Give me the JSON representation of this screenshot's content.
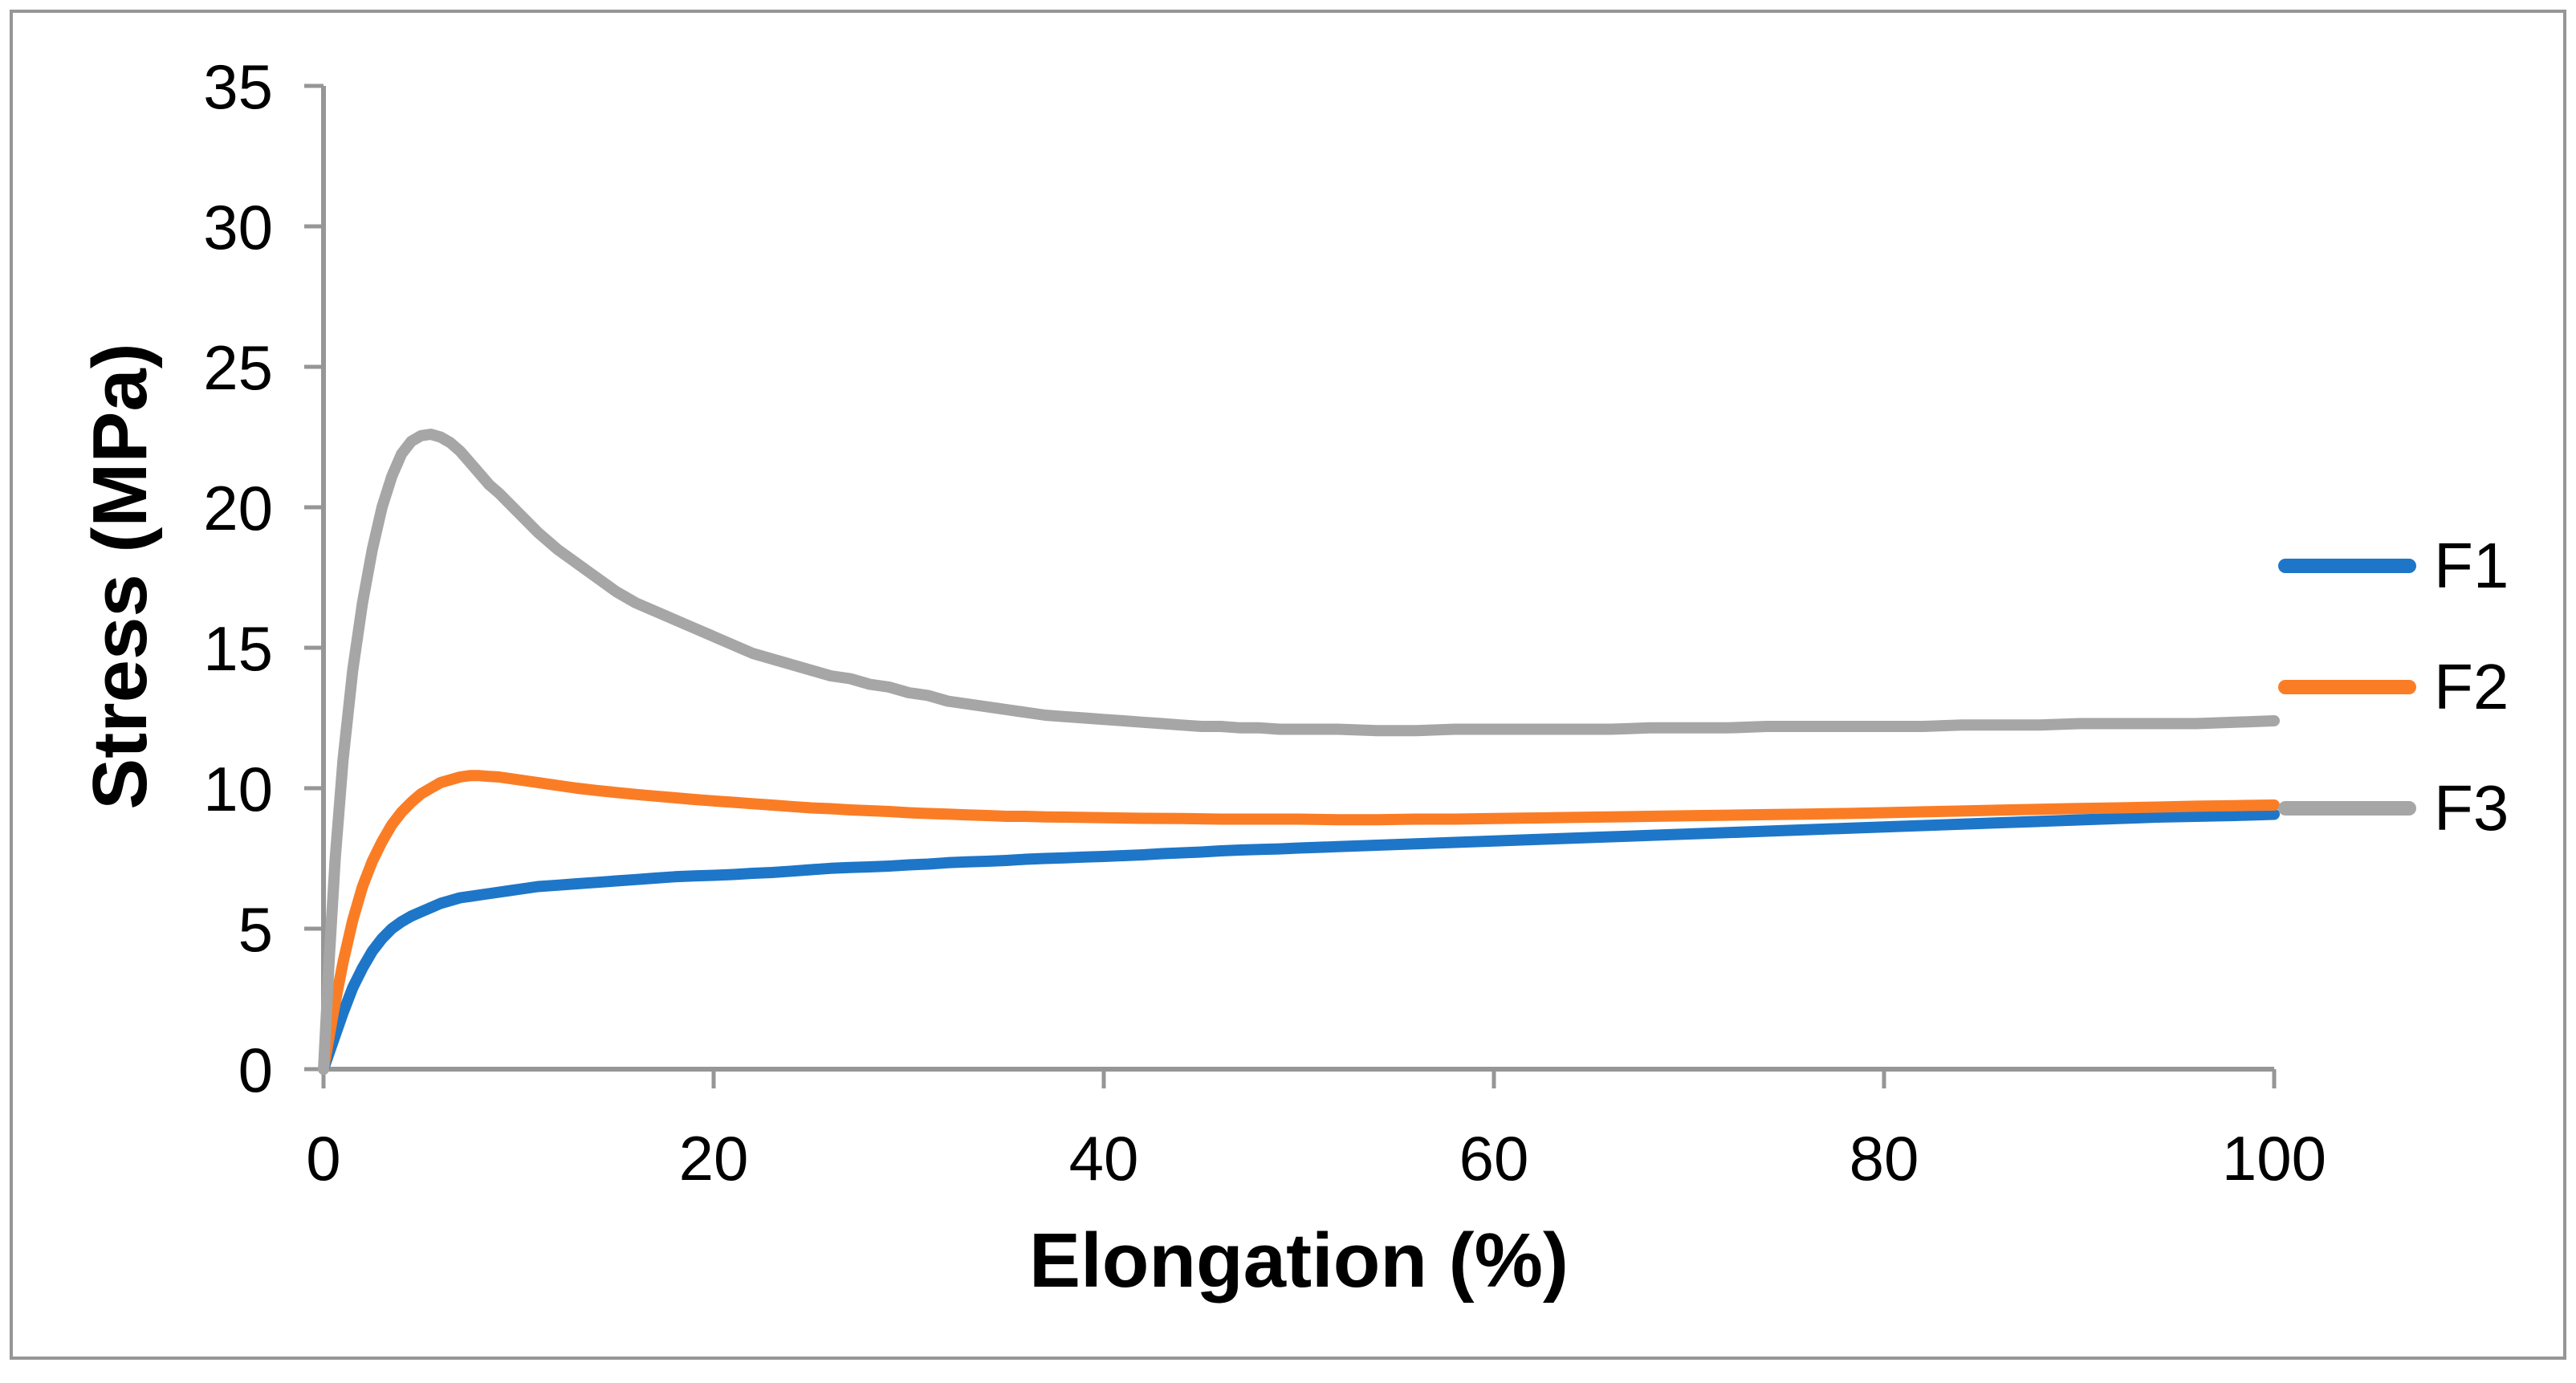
{
  "figure": {
    "background": "#FFFFFF",
    "border_color": "#969696"
  },
  "chart_data": {
    "type": "line",
    "title": "",
    "xlabel": "Elongation (%)",
    "ylabel": "Stress (MPa)",
    "xlim": [
      0,
      100
    ],
    "ylim": [
      0,
      35
    ],
    "xticks": [
      0,
      20,
      40,
      60,
      80,
      100
    ],
    "yticks": [
      0,
      5,
      10,
      15,
      20,
      25,
      30,
      35
    ],
    "grid": false,
    "legend_position": "right-middle",
    "axis_color": "#969696",
    "tick_label_color": "#000000",
    "series": [
      {
        "name": "F1",
        "color": "#1E76C8",
        "points": [
          [
            0,
            0
          ],
          [
            0.5,
            1.0
          ],
          [
            1,
            2.0
          ],
          [
            1.5,
            2.9
          ],
          [
            2,
            3.6
          ],
          [
            2.5,
            4.2
          ],
          [
            3,
            4.65
          ],
          [
            3.5,
            5.0
          ],
          [
            4,
            5.25
          ],
          [
            4.5,
            5.45
          ],
          [
            5,
            5.6
          ],
          [
            5.5,
            5.75
          ],
          [
            6,
            5.9
          ],
          [
            6.5,
            6.0
          ],
          [
            7,
            6.1
          ],
          [
            7.5,
            6.15
          ],
          [
            8,
            6.2
          ],
          [
            9,
            6.3
          ],
          [
            10,
            6.4
          ],
          [
            11,
            6.5
          ],
          [
            12,
            6.55
          ],
          [
            13,
            6.6
          ],
          [
            14,
            6.65
          ],
          [
            15,
            6.7
          ],
          [
            16,
            6.75
          ],
          [
            17,
            6.8
          ],
          [
            18,
            6.85
          ],
          [
            19,
            6.88
          ],
          [
            20,
            6.9
          ],
          [
            21,
            6.93
          ],
          [
            22,
            6.97
          ],
          [
            23,
            7.0
          ],
          [
            24,
            7.05
          ],
          [
            25,
            7.1
          ],
          [
            26,
            7.15
          ],
          [
            27,
            7.18
          ],
          [
            28,
            7.2
          ],
          [
            29,
            7.23
          ],
          [
            30,
            7.27
          ],
          [
            31,
            7.3
          ],
          [
            32,
            7.35
          ],
          [
            33,
            7.38
          ],
          [
            34,
            7.4
          ],
          [
            35,
            7.43
          ],
          [
            36,
            7.47
          ],
          [
            37,
            7.5
          ],
          [
            38,
            7.52
          ],
          [
            39,
            7.55
          ],
          [
            40,
            7.57
          ],
          [
            41,
            7.6
          ],
          [
            42,
            7.63
          ],
          [
            43,
            7.67
          ],
          [
            44,
            7.7
          ],
          [
            45,
            7.73
          ],
          [
            46,
            7.77
          ],
          [
            47,
            7.8
          ],
          [
            48,
            7.82
          ],
          [
            49,
            7.84
          ],
          [
            50,
            7.87
          ],
          [
            52,
            7.92
          ],
          [
            54,
            7.97
          ],
          [
            56,
            8.02
          ],
          [
            58,
            8.07
          ],
          [
            60,
            8.12
          ],
          [
            62,
            8.17
          ],
          [
            64,
            8.22
          ],
          [
            66,
            8.27
          ],
          [
            68,
            8.32
          ],
          [
            70,
            8.37
          ],
          [
            72,
            8.42
          ],
          [
            74,
            8.47
          ],
          [
            76,
            8.52
          ],
          [
            78,
            8.57
          ],
          [
            80,
            8.62
          ],
          [
            82,
            8.67
          ],
          [
            84,
            8.72
          ],
          [
            86,
            8.77
          ],
          [
            88,
            8.82
          ],
          [
            90,
            8.87
          ],
          [
            92,
            8.92
          ],
          [
            94,
            8.97
          ],
          [
            96,
            9.0
          ],
          [
            98,
            9.03
          ],
          [
            100,
            9.07
          ]
        ]
      },
      {
        "name": "F2",
        "color": "#FA7D26",
        "points": [
          [
            0,
            0
          ],
          [
            0.5,
            2.0
          ],
          [
            1,
            3.8
          ],
          [
            1.5,
            5.3
          ],
          [
            2,
            6.5
          ],
          [
            2.5,
            7.4
          ],
          [
            3,
            8.1
          ],
          [
            3.5,
            8.7
          ],
          [
            4,
            9.15
          ],
          [
            4.5,
            9.5
          ],
          [
            5,
            9.8
          ],
          [
            5.5,
            10.0
          ],
          [
            6,
            10.2
          ],
          [
            6.5,
            10.3
          ],
          [
            7,
            10.4
          ],
          [
            7.5,
            10.45
          ],
          [
            8,
            10.45
          ],
          [
            8.5,
            10.42
          ],
          [
            9,
            10.4
          ],
          [
            10,
            10.3
          ],
          [
            11,
            10.2
          ],
          [
            12,
            10.1
          ],
          [
            13,
            10.0
          ],
          [
            14,
            9.92
          ],
          [
            15,
            9.85
          ],
          [
            16,
            9.78
          ],
          [
            17,
            9.72
          ],
          [
            18,
            9.66
          ],
          [
            19,
            9.6
          ],
          [
            20,
            9.55
          ],
          [
            21,
            9.5
          ],
          [
            22,
            9.45
          ],
          [
            23,
            9.4
          ],
          [
            24,
            9.35
          ],
          [
            25,
            9.3
          ],
          [
            26,
            9.27
          ],
          [
            27,
            9.23
          ],
          [
            28,
            9.2
          ],
          [
            29,
            9.17
          ],
          [
            30,
            9.13
          ],
          [
            31,
            9.1
          ],
          [
            32,
            9.08
          ],
          [
            33,
            9.05
          ],
          [
            34,
            9.03
          ],
          [
            35,
            9.0
          ],
          [
            36,
            9.0
          ],
          [
            37,
            8.98
          ],
          [
            38,
            8.97
          ],
          [
            39,
            8.96
          ],
          [
            40,
            8.95
          ],
          [
            42,
            8.93
          ],
          [
            44,
            8.92
          ],
          [
            46,
            8.9
          ],
          [
            48,
            8.9
          ],
          [
            50,
            8.9
          ],
          [
            52,
            8.88
          ],
          [
            54,
            8.88
          ],
          [
            56,
            8.9
          ],
          [
            58,
            8.9
          ],
          [
            60,
            8.92
          ],
          [
            62,
            8.94
          ],
          [
            64,
            8.96
          ],
          [
            66,
            8.98
          ],
          [
            68,
            9.0
          ],
          [
            70,
            9.02
          ],
          [
            72,
            9.04
          ],
          [
            74,
            9.06
          ],
          [
            76,
            9.08
          ],
          [
            78,
            9.1
          ],
          [
            80,
            9.13
          ],
          [
            82,
            9.16
          ],
          [
            84,
            9.19
          ],
          [
            86,
            9.22
          ],
          [
            88,
            9.25
          ],
          [
            90,
            9.28
          ],
          [
            92,
            9.3
          ],
          [
            94,
            9.33
          ],
          [
            96,
            9.36
          ],
          [
            98,
            9.38
          ],
          [
            100,
            9.4
          ]
        ]
      },
      {
        "name": "F3",
        "color": "#A6A6A6",
        "points": [
          [
            0,
            0
          ],
          [
            0.3,
            4.0
          ],
          [
            0.6,
            7.5
          ],
          [
            1,
            11.0
          ],
          [
            1.5,
            14.2
          ],
          [
            2,
            16.6
          ],
          [
            2.5,
            18.5
          ],
          [
            3,
            20.0
          ],
          [
            3.5,
            21.1
          ],
          [
            4,
            21.9
          ],
          [
            4.5,
            22.35
          ],
          [
            5,
            22.55
          ],
          [
            5.5,
            22.6
          ],
          [
            6,
            22.5
          ],
          [
            6.5,
            22.3
          ],
          [
            7,
            22.0
          ],
          [
            7.5,
            21.6
          ],
          [
            8,
            21.2
          ],
          [
            8.5,
            20.8
          ],
          [
            9,
            20.5
          ],
          [
            10,
            19.8
          ],
          [
            11,
            19.1
          ],
          [
            12,
            18.5
          ],
          [
            13,
            18.0
          ],
          [
            14,
            17.5
          ],
          [
            15,
            17.0
          ],
          [
            16,
            16.6
          ],
          [
            17,
            16.3
          ],
          [
            18,
            16.0
          ],
          [
            19,
            15.7
          ],
          [
            20,
            15.4
          ],
          [
            21,
            15.1
          ],
          [
            22,
            14.8
          ],
          [
            23,
            14.6
          ],
          [
            24,
            14.4
          ],
          [
            25,
            14.2
          ],
          [
            26,
            14.0
          ],
          [
            27,
            13.9
          ],
          [
            28,
            13.7
          ],
          [
            29,
            13.6
          ],
          [
            30,
            13.4
          ],
          [
            31,
            13.3
          ],
          [
            32,
            13.1
          ],
          [
            33,
            13.0
          ],
          [
            34,
            12.9
          ],
          [
            35,
            12.8
          ],
          [
            36,
            12.7
          ],
          [
            37,
            12.6
          ],
          [
            38,
            12.55
          ],
          [
            39,
            12.5
          ],
          [
            40,
            12.45
          ],
          [
            41,
            12.4
          ],
          [
            42,
            12.35
          ],
          [
            43,
            12.3
          ],
          [
            44,
            12.25
          ],
          [
            45,
            12.2
          ],
          [
            46,
            12.2
          ],
          [
            47,
            12.15
          ],
          [
            48,
            12.15
          ],
          [
            49,
            12.1
          ],
          [
            50,
            12.1
          ],
          [
            52,
            12.1
          ],
          [
            54,
            12.05
          ],
          [
            56,
            12.05
          ],
          [
            58,
            12.1
          ],
          [
            60,
            12.1
          ],
          [
            62,
            12.1
          ],
          [
            64,
            12.1
          ],
          [
            66,
            12.1
          ],
          [
            68,
            12.15
          ],
          [
            70,
            12.15
          ],
          [
            72,
            12.15
          ],
          [
            74,
            12.2
          ],
          [
            76,
            12.2
          ],
          [
            78,
            12.2
          ],
          [
            80,
            12.2
          ],
          [
            82,
            12.2
          ],
          [
            84,
            12.25
          ],
          [
            86,
            12.25
          ],
          [
            88,
            12.25
          ],
          [
            90,
            12.3
          ],
          [
            92,
            12.3
          ],
          [
            94,
            12.3
          ],
          [
            96,
            12.3
          ],
          [
            98,
            12.35
          ],
          [
            100,
            12.4
          ]
        ]
      }
    ]
  }
}
